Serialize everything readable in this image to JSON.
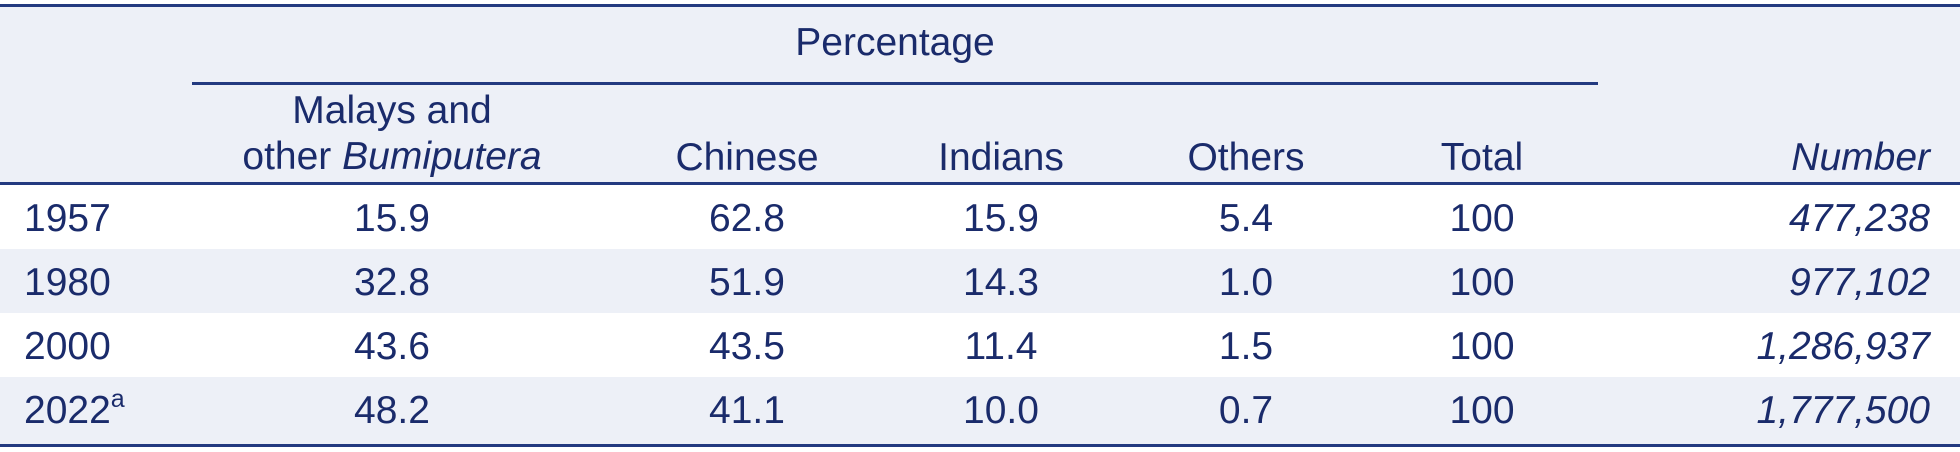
{
  "table": {
    "spanner_label": "Percentage",
    "headers": {
      "malays_line1": "Malays and",
      "malays_line2_prefix": "other ",
      "malays_line2_italic": "Bumiputera",
      "chinese": "Chinese",
      "indians": "Indians",
      "others": "Others",
      "total": "Total",
      "number": "Number"
    },
    "rows": [
      {
        "year": "1957",
        "note": "",
        "malays": "15.9",
        "chinese": "62.8",
        "indians": "15.9",
        "others": "5.4",
        "total": "100",
        "number": "477,238"
      },
      {
        "year": "1980",
        "note": "",
        "malays": "32.8",
        "chinese": "51.9",
        "indians": "14.3",
        "others": "1.0",
        "total": "100",
        "number": "977,102"
      },
      {
        "year": "2000",
        "note": "",
        "malays": "43.6",
        "chinese": "43.5",
        "indians": "11.4",
        "others": "1.5",
        "total": "100",
        "number": "1,286,937"
      },
      {
        "year": "2022",
        "note": "a",
        "malays": "48.2",
        "chinese": "41.1",
        "indians": "10.0",
        "others": "0.7",
        "total": "100",
        "number": "1,777,500"
      }
    ]
  },
  "colors": {
    "text": "#1a2b6b",
    "rule": "#233a80",
    "shade": "#edf0f7"
  }
}
